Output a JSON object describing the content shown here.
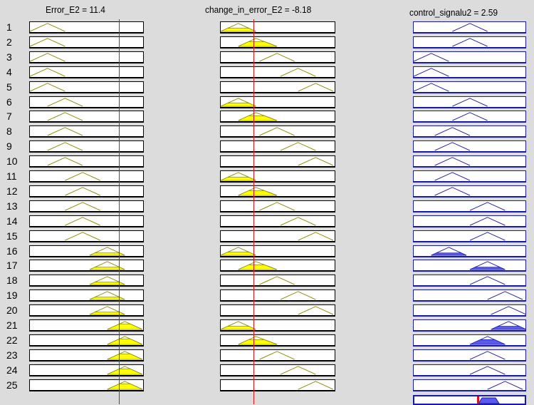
{
  "headers": {
    "input1": "Error_E2 = 11.4",
    "input2": "change_in_error_E2 = -8.18",
    "output": "control_signalu2 = 2.59"
  },
  "rule_numbers": [
    "1",
    "2",
    "3",
    "4",
    "5",
    "6",
    "7",
    "8",
    "9",
    "10",
    "11",
    "12",
    "13",
    "14",
    "15",
    "16",
    "17",
    "18",
    "19",
    "20",
    "21",
    "22",
    "23",
    "24",
    "25"
  ],
  "input1_mf": [
    0,
    0,
    0,
    0,
    0,
    1,
    1,
    1,
    1,
    1,
    2,
    2,
    2,
    2,
    2,
    3,
    3,
    3,
    3,
    3,
    4,
    4,
    4,
    4,
    4
  ],
  "input2_mf": [
    0,
    1,
    2,
    3,
    4,
    0,
    1,
    2,
    3,
    4,
    0,
    1,
    2,
    3,
    4,
    0,
    1,
    2,
    3,
    4,
    0,
    1,
    2,
    3,
    4
  ],
  "output_mf": [
    4,
    4,
    0,
    0,
    0,
    4,
    4,
    2,
    2,
    2,
    2,
    2,
    5,
    5,
    5,
    1,
    5,
    5,
    6,
    7,
    7,
    5,
    5,
    5,
    6
  ],
  "input1_firing": [
    0,
    0,
    0,
    0,
    0,
    0,
    0,
    0,
    0,
    0,
    0,
    0,
    0,
    0,
    0,
    0.3,
    0.3,
    0.3,
    0.3,
    0.3,
    0.7,
    0.7,
    0.7,
    0.7,
    0.7
  ],
  "input2_firing": [
    0.4,
    0.6,
    0,
    0,
    0,
    0.4,
    0.6,
    0,
    0,
    0,
    0.4,
    0.6,
    0,
    0,
    0,
    0.4,
    0.6,
    0,
    0,
    0,
    0.4,
    0.6,
    0,
    0,
    0
  ],
  "input1_value_fraction": 0.78,
  "input2_value_fraction": 0.29,
  "output_value_fraction": 0.58,
  "colors": {
    "fill": "#ffff00",
    "input_stroke": "#8a8a00",
    "output_stroke": "#1a1aa8",
    "output_fill": "#5a5aee",
    "marker": "#e01010"
  }
}
